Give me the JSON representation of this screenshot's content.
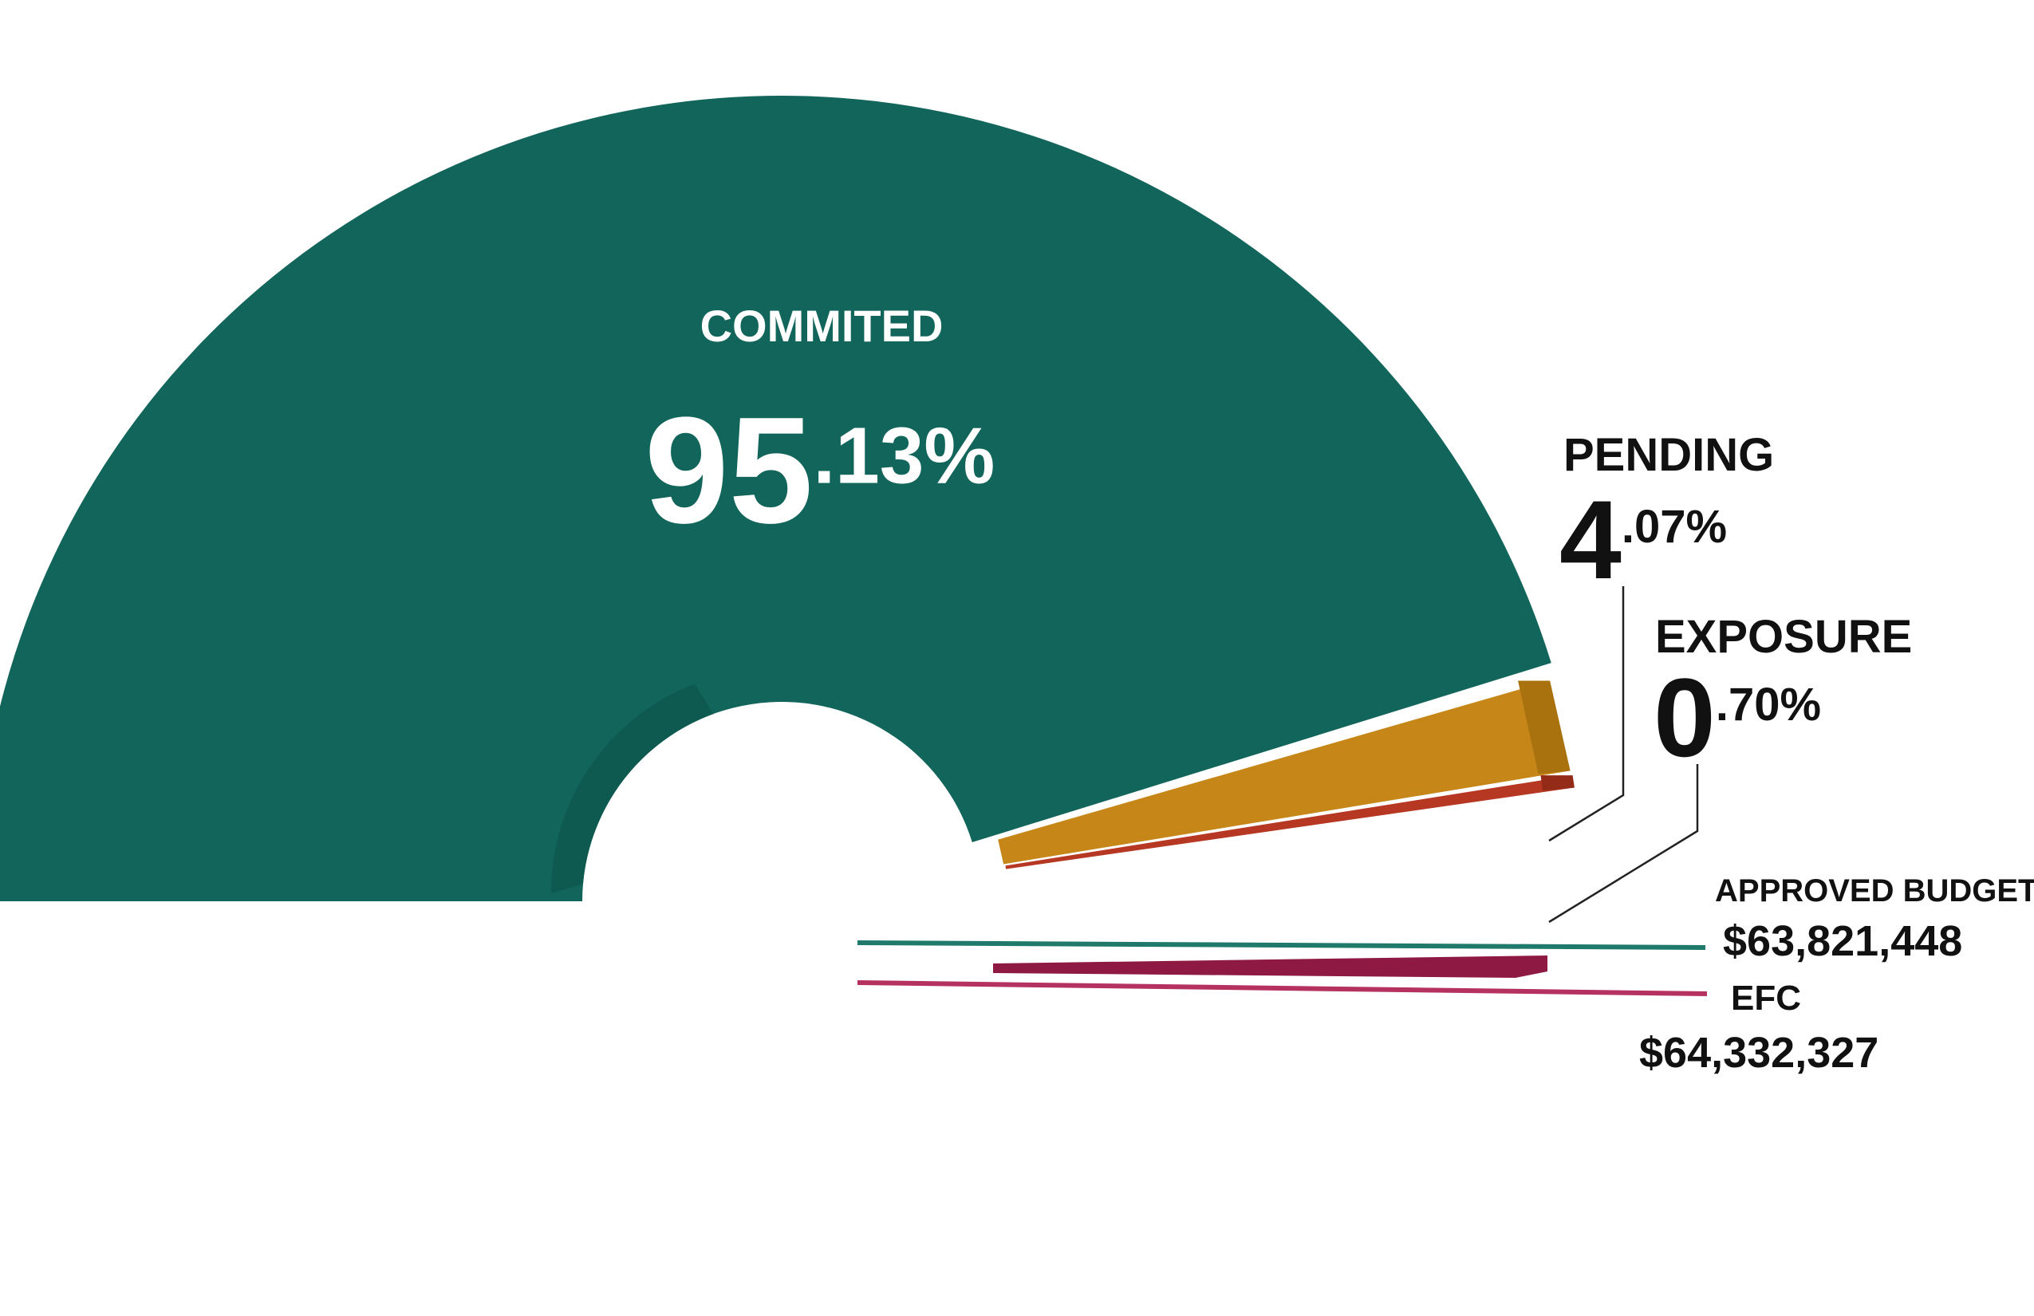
{
  "chart_data": {
    "type": "pie",
    "style": "semicircle-donut",
    "colors": {
      "committed": "#12655b",
      "committed_shade": "#0e5a50",
      "pending": "#c68718",
      "pending_shade": "#a9720f",
      "exposure": "#b73822",
      "exposure_shade": "#942a18",
      "efc_bar": "#8e1a43",
      "approved_line": "#1f7a6c",
      "efc_line": "#b5315f",
      "leader": "#222222"
    },
    "slices": [
      {
        "key": "committed",
        "label": "COMMITED",
        "value": 95.13,
        "int_part": "95",
        "dec_part": ".13%"
      },
      {
        "key": "pending",
        "label": "PENDING",
        "value": 4.07,
        "int_part": "4",
        "dec_part": ".07%"
      },
      {
        "key": "exposure",
        "label": "EXPOSURE",
        "value": 0.7,
        "int_part": "0",
        "dec_part": ".70%"
      }
    ],
    "reference_lines": [
      {
        "key": "approved",
        "label": "APPROVED BUDGET",
        "amount": "$63,821,448",
        "value": 63821448
      },
      {
        "key": "efc",
        "label": "EFC",
        "amount": "$64,332,327",
        "value": 64332327
      }
    ]
  }
}
